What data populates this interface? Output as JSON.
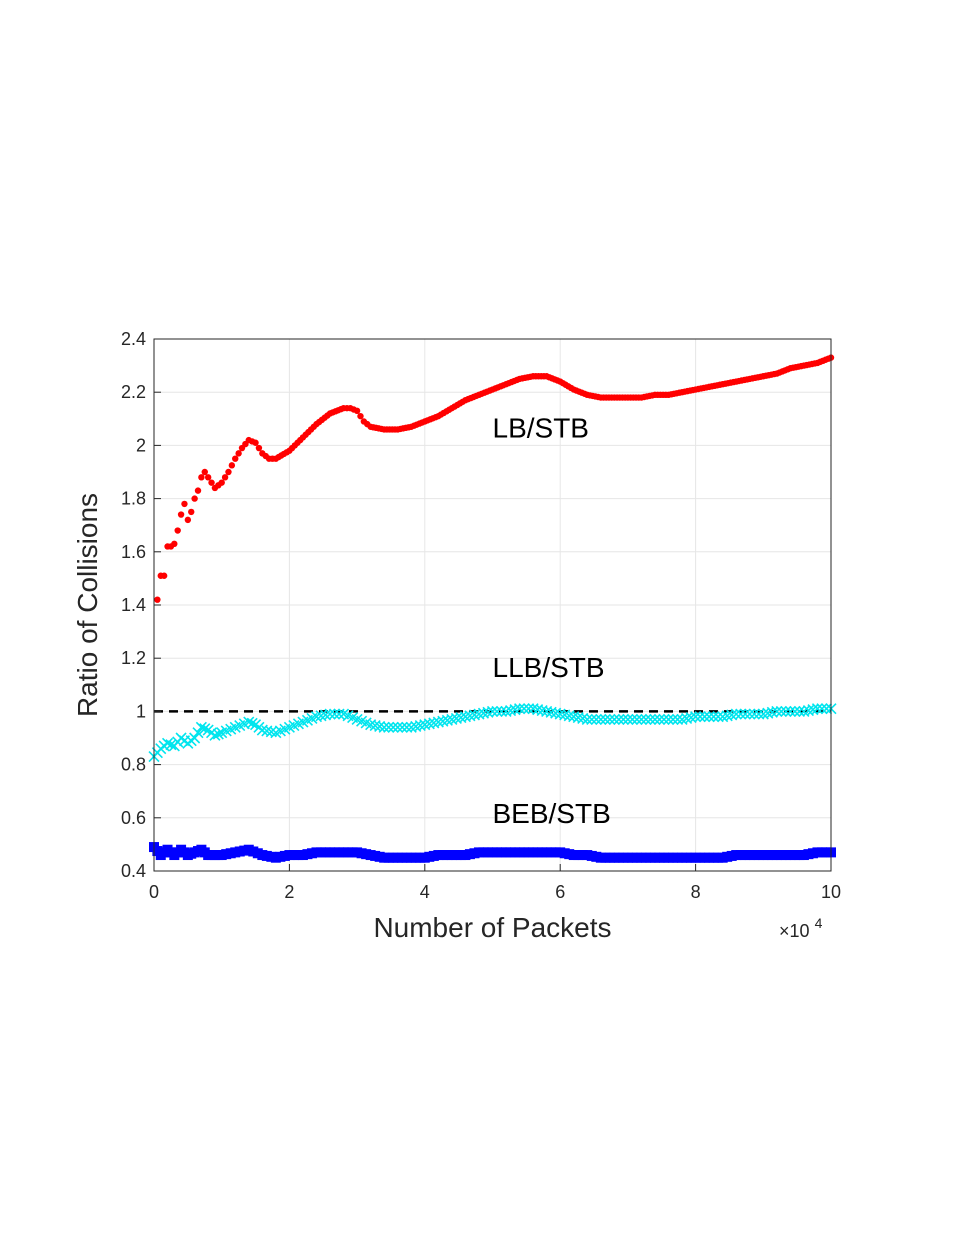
{
  "chart_data": {
    "type": "scatter",
    "xlabel": "Number of Packets",
    "ylabel": "Ratio of Collisions",
    "x_exponent_label": "×10",
    "x_exponent_power": "4",
    "xlim": [
      0,
      10
    ],
    "ylim": [
      0.4,
      2.4
    ],
    "x_ticks": [
      "0",
      "2",
      "4",
      "6",
      "8",
      "10"
    ],
    "y_ticks": [
      "0.4",
      "0.6",
      "0.8",
      "1",
      "1.2",
      "1.4",
      "1.6",
      "1.8",
      "2",
      "2.2",
      "2.4"
    ],
    "grid": true,
    "reference_line": {
      "y": 1,
      "style": "dashed",
      "color": "#000000"
    },
    "annotations": [
      {
        "text": "LB/STB",
        "x": 5.0,
        "y": 2.03
      },
      {
        "text": "LLB/STB",
        "x": 5.0,
        "y": 1.13
      },
      {
        "text": "BEB/STB",
        "x": 5.0,
        "y": 0.58
      }
    ],
    "series": [
      {
        "label": "LB/STB",
        "color": "#ff0000",
        "marker": "dot",
        "x": [
          0.05,
          0.1,
          0.15,
          0.2,
          0.25,
          0.3,
          0.35,
          0.4,
          0.45,
          0.5,
          0.55,
          0.6,
          0.65,
          0.7,
          0.75,
          0.8,
          0.9,
          1.0,
          1.1,
          1.2,
          1.3,
          1.4,
          1.5,
          1.6,
          1.7,
          1.8,
          2.0,
          2.2,
          2.4,
          2.6,
          2.8,
          2.9,
          3.0,
          3.1,
          3.2,
          3.4,
          3.6,
          3.8,
          4.0,
          4.2,
          4.4,
          4.6,
          4.8,
          5.0,
          5.2,
          5.4,
          5.6,
          5.8,
          6.0,
          6.2,
          6.4,
          6.6,
          6.8,
          7.0,
          7.2,
          7.4,
          7.6,
          7.8,
          8.0,
          8.2,
          8.4,
          8.6,
          8.8,
          9.0,
          9.2,
          9.4,
          9.6,
          9.8,
          10.0
        ],
        "values": [
          1.42,
          1.51,
          1.51,
          1.62,
          1.62,
          1.63,
          1.68,
          1.74,
          1.78,
          1.72,
          1.75,
          1.8,
          1.83,
          1.88,
          1.9,
          1.88,
          1.84,
          1.86,
          1.9,
          1.95,
          1.99,
          2.02,
          2.01,
          1.97,
          1.95,
          1.95,
          1.98,
          2.03,
          2.08,
          2.12,
          2.14,
          2.14,
          2.13,
          2.09,
          2.07,
          2.06,
          2.06,
          2.07,
          2.09,
          2.11,
          2.14,
          2.17,
          2.19,
          2.21,
          2.23,
          2.25,
          2.26,
          2.26,
          2.24,
          2.21,
          2.19,
          2.18,
          2.18,
          2.18,
          2.18,
          2.19,
          2.19,
          2.2,
          2.21,
          2.22,
          2.23,
          2.24,
          2.25,
          2.26,
          2.27,
          2.29,
          2.3,
          2.31,
          2.33
        ]
      },
      {
        "label": "LLB/STB",
        "color": "#00e5ee",
        "marker": "x",
        "x": [
          0.0,
          0.1,
          0.2,
          0.3,
          0.4,
          0.5,
          0.6,
          0.7,
          0.8,
          0.9,
          1.0,
          1.2,
          1.4,
          1.5,
          1.6,
          1.8,
          2.0,
          2.2,
          2.4,
          2.6,
          2.8,
          3.0,
          3.2,
          3.4,
          3.6,
          3.8,
          4.0,
          4.2,
          4.4,
          4.6,
          4.8,
          5.0,
          5.2,
          5.4,
          5.6,
          5.8,
          6.0,
          6.2,
          6.4,
          6.6,
          6.8,
          7.0,
          7.2,
          7.4,
          7.6,
          7.8,
          8.0,
          8.2,
          8.4,
          8.6,
          8.8,
          9.0,
          9.2,
          9.4,
          9.6,
          9.8,
          10.0
        ],
        "values": [
          0.83,
          0.86,
          0.88,
          0.87,
          0.9,
          0.88,
          0.9,
          0.94,
          0.93,
          0.91,
          0.92,
          0.94,
          0.96,
          0.95,
          0.93,
          0.92,
          0.94,
          0.96,
          0.98,
          0.99,
          0.99,
          0.97,
          0.95,
          0.94,
          0.94,
          0.94,
          0.95,
          0.96,
          0.97,
          0.98,
          0.99,
          1.0,
          1.0,
          1.01,
          1.01,
          1.0,
          0.99,
          0.98,
          0.97,
          0.97,
          0.97,
          0.97,
          0.97,
          0.97,
          0.97,
          0.97,
          0.98,
          0.98,
          0.98,
          0.99,
          0.99,
          0.99,
          1.0,
          1.0,
          1.0,
          1.01,
          1.01
        ]
      },
      {
        "label": "BEB/STB",
        "color": "#0000ff",
        "marker": "square",
        "x": [
          0.0,
          0.1,
          0.2,
          0.3,
          0.4,
          0.5,
          0.6,
          0.7,
          0.8,
          0.9,
          1.0,
          1.2,
          1.4,
          1.6,
          1.8,
          2.0,
          2.2,
          2.4,
          2.6,
          2.8,
          3.0,
          3.2,
          3.4,
          3.6,
          3.8,
          4.0,
          4.2,
          4.4,
          4.6,
          4.8,
          5.0,
          5.2,
          5.4,
          5.6,
          5.8,
          6.0,
          6.2,
          6.4,
          6.6,
          6.8,
          7.0,
          7.2,
          7.4,
          7.6,
          7.8,
          8.0,
          8.2,
          8.4,
          8.6,
          8.8,
          9.0,
          9.2,
          9.4,
          9.6,
          9.8,
          10.0
        ],
        "values": [
          0.49,
          0.46,
          0.48,
          0.46,
          0.48,
          0.46,
          0.47,
          0.48,
          0.46,
          0.46,
          0.46,
          0.47,
          0.48,
          0.46,
          0.45,
          0.46,
          0.46,
          0.47,
          0.47,
          0.47,
          0.47,
          0.46,
          0.45,
          0.45,
          0.45,
          0.45,
          0.46,
          0.46,
          0.46,
          0.47,
          0.47,
          0.47,
          0.47,
          0.47,
          0.47,
          0.47,
          0.46,
          0.46,
          0.45,
          0.45,
          0.45,
          0.45,
          0.45,
          0.45,
          0.45,
          0.45,
          0.45,
          0.45,
          0.46,
          0.46,
          0.46,
          0.46,
          0.46,
          0.46,
          0.47,
          0.47
        ]
      }
    ]
  }
}
